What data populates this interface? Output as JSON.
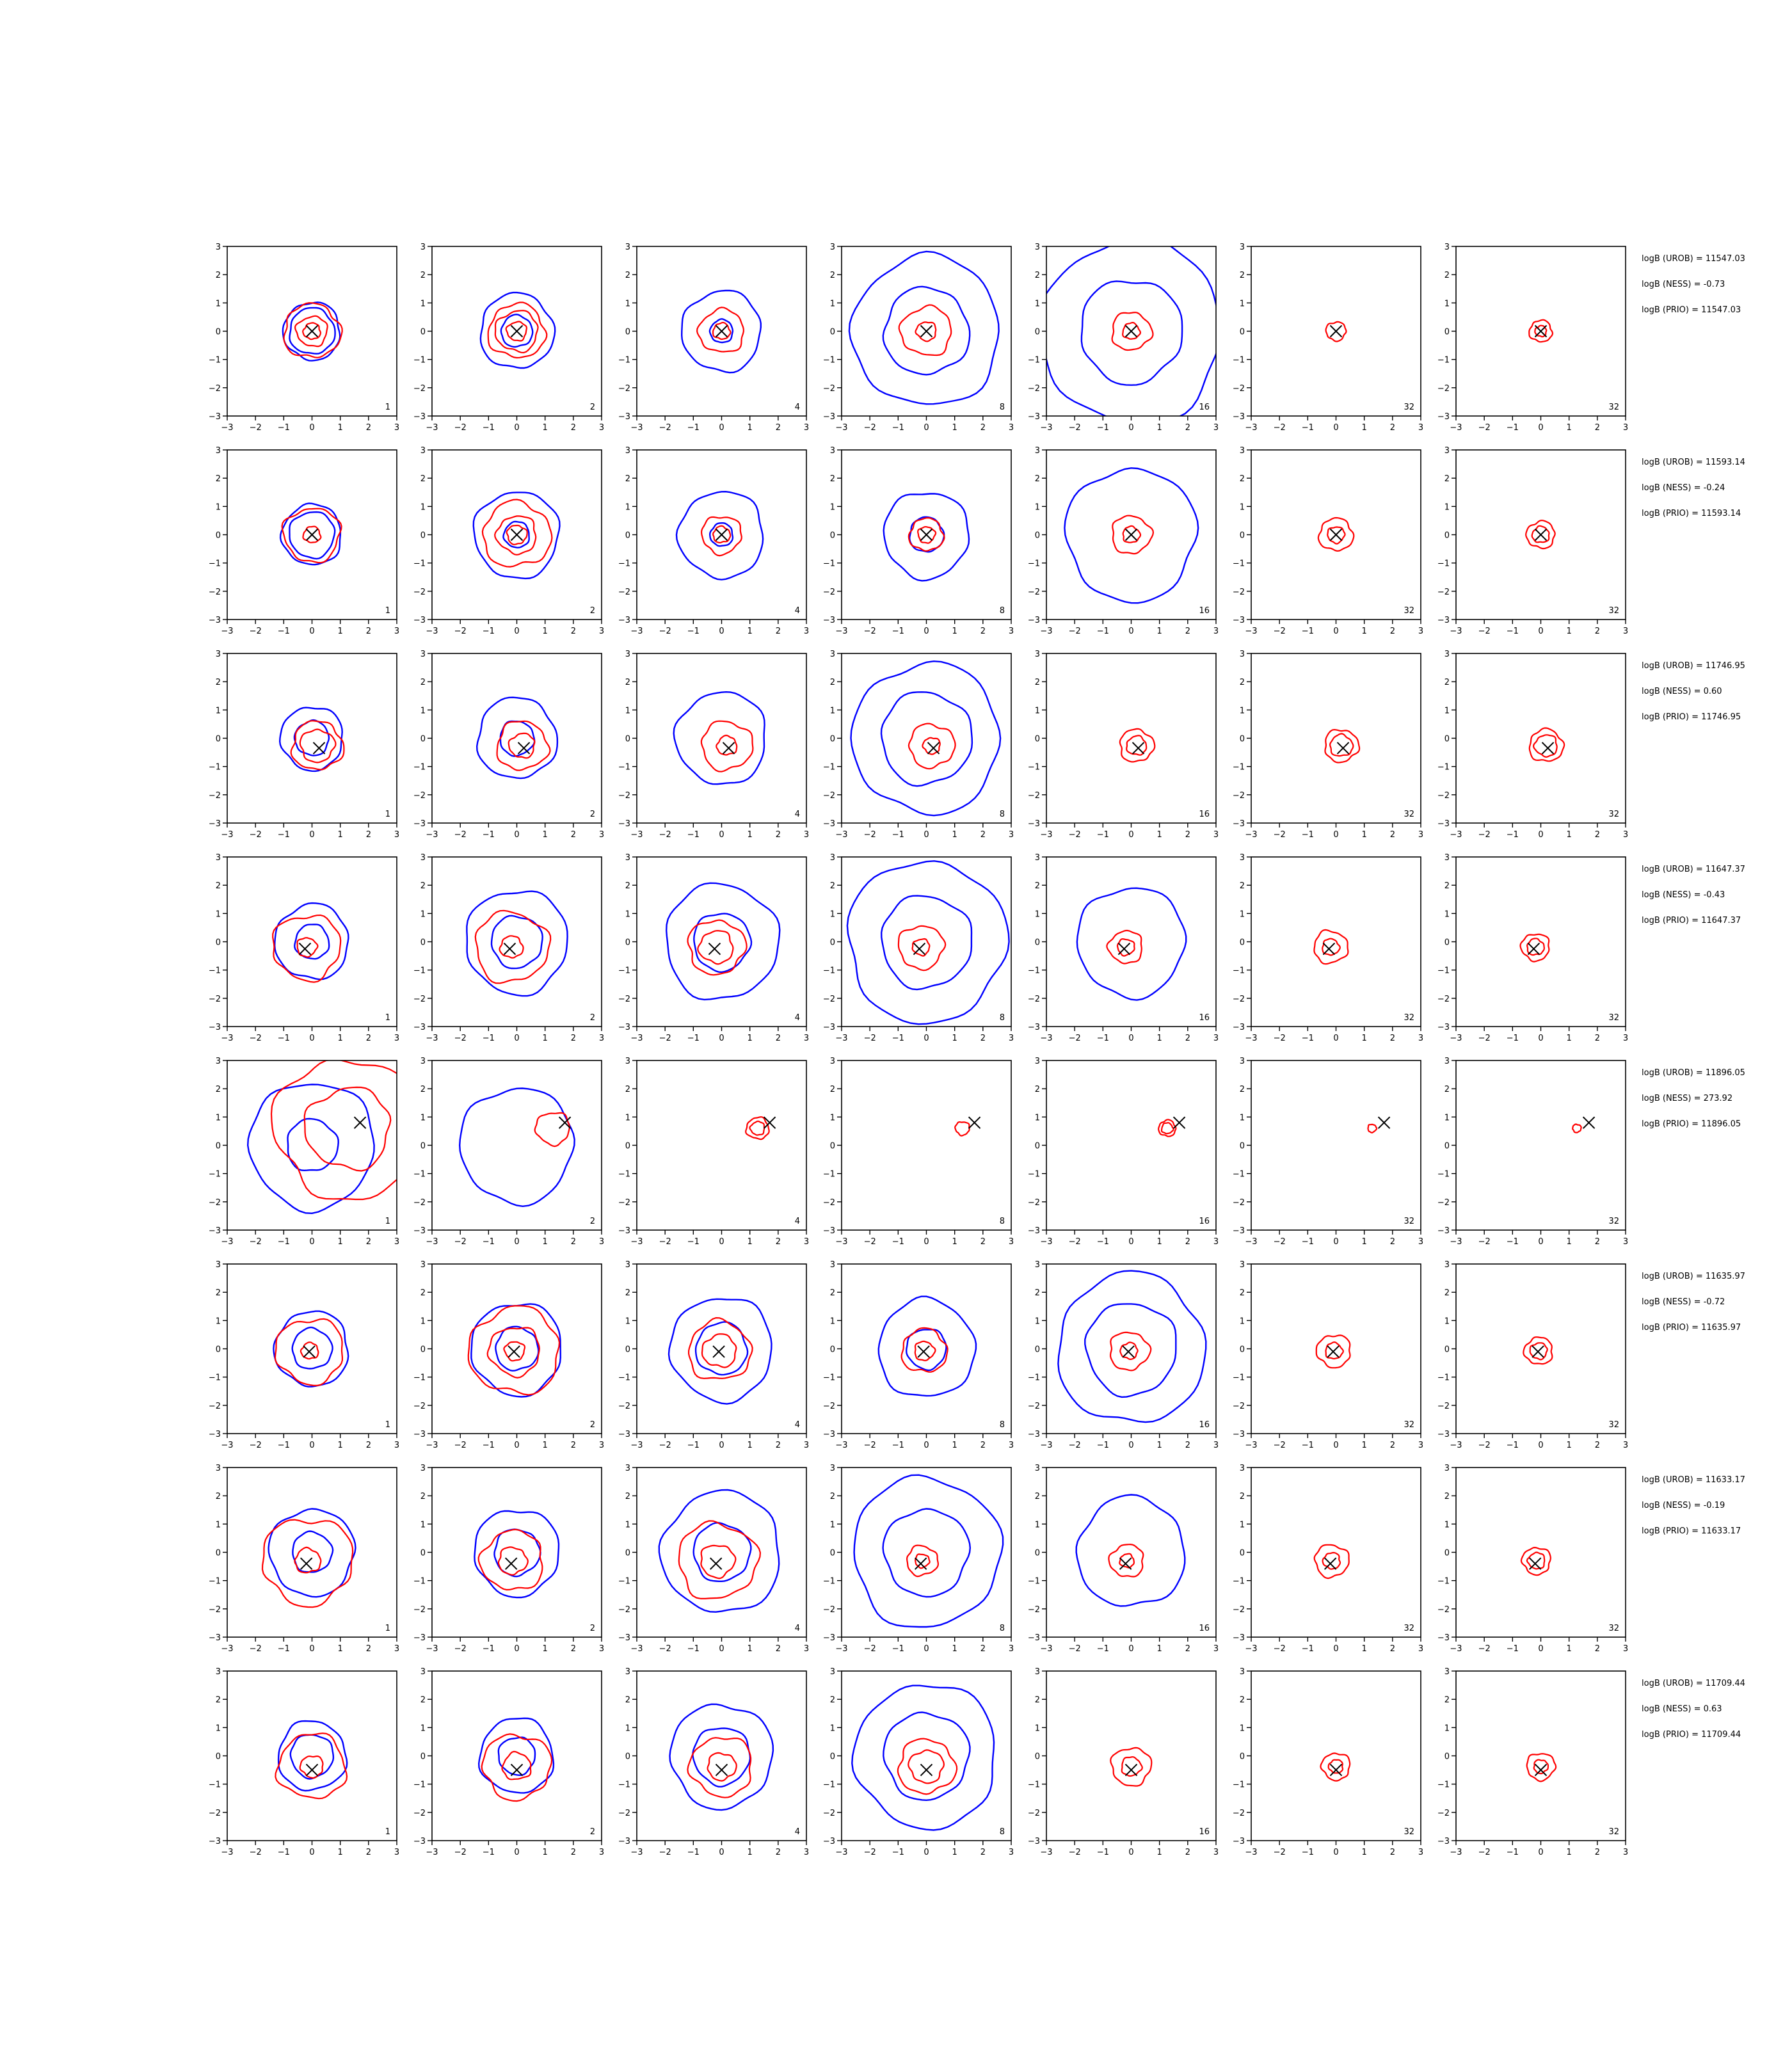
{
  "chart_data": {
    "type": "contour-grid",
    "xlim": [
      -3,
      3
    ],
    "ylim": [
      -3,
      3
    ],
    "ticks": [
      "-3",
      "-2",
      "-1",
      "0",
      "1",
      "2",
      "3"
    ],
    "contour_colors": {
      "blue": "#0000ff",
      "red": "#ff0000",
      "marker": "#000000"
    },
    "grid": false,
    "rows": [
      {
        "truth": [
          0.0,
          0.0
        ],
        "panels": [
          {
            "label": "1",
            "blue": [
              0.8,
              1.0
            ],
            "red": [
              0.3,
              1.0,
              0.55
            ]
          },
          {
            "label": "2",
            "blue": [
              0.55,
              1.3
            ],
            "red": [
              0.35,
              0.75,
              1.0
            ]
          },
          {
            "label": "4",
            "blue": [
              0.4,
              1.4
            ],
            "red": [
              0.3,
              0.8
            ]
          },
          {
            "label": "8",
            "blue": [
              1.5,
              2.6
            ],
            "red": [
              0.35,
              0.9
            ]
          },
          {
            "label": "16",
            "blue": [
              1.8,
              3.2
            ],
            "red": [
              0.3,
              0.7
            ]
          },
          {
            "label": "32",
            "blue": [],
            "red": [
              0.35
            ]
          },
          {
            "label": "32",
            "blue": [],
            "red": [
              0.2,
              0.4
            ]
          }
        ],
        "stats": {
          "urob": "logB (UROB) = 11547.03",
          "ness": "logB (NESS) = -0.73",
          "prio": "logB (PRIO) = 11547.03"
        }
      },
      {
        "truth": [
          0.0,
          0.0
        ],
        "panels": [
          {
            "label": "1",
            "blue": [
              0.8,
              1.05
            ],
            "red": [
              0.3,
              1.0
            ]
          },
          {
            "label": "2",
            "blue": [
              0.45,
              1.5
            ],
            "red": [
              0.35,
              0.7,
              1.2
            ]
          },
          {
            "label": "4",
            "blue": [
              0.4,
              1.5
            ],
            "red": [
              0.3,
              0.7
            ]
          },
          {
            "label": "8",
            "blue": [
              0.6,
              1.5
            ],
            "red": [
              0.3,
              0.6
            ]
          },
          {
            "label": "16",
            "blue": [
              2.3
            ],
            "red": [
              0.3,
              0.7
            ]
          },
          {
            "label": "32",
            "blue": [],
            "red": [
              0.3,
              0.6
            ]
          },
          {
            "label": "32",
            "blue": [],
            "red": [
              0.3,
              0.5
            ]
          }
        ],
        "stats": {
          "urob": "logB (UROB) = 11593.14",
          "ness": "logB (NESS) = -0.24",
          "prio": "logB (PRIO) = 11593.14"
        }
      },
      {
        "truth": [
          0.25,
          -0.35
        ],
        "panels": [
          {
            "label": "1",
            "blue": [
              0.6,
              1.1
            ],
            "red": [
              0.6,
              0.9
            ]
          },
          {
            "label": "2",
            "blue": [
              0.6,
              1.4
            ],
            "red": [
              0.45,
              0.9
            ]
          },
          {
            "label": "4",
            "blue": [
              1.6
            ],
            "red": [
              0.35,
              0.9
            ]
          },
          {
            "label": "8",
            "blue": [
              1.6,
              2.6
            ],
            "red": [
              0.3,
              0.8
            ]
          },
          {
            "label": "16",
            "blue": [],
            "red": [
              0.35,
              0.6
            ]
          },
          {
            "label": "32",
            "blue": [],
            "red": [
              0.4,
              0.6
            ]
          },
          {
            "label": "32",
            "blue": [],
            "red": [
              0.4,
              0.6
            ]
          }
        ],
        "stats": {
          "urob": "logB (UROB) = 11746.95",
          "ness": "logB (NESS) = 0.60",
          "prio": "logB (PRIO) = 11746.95"
        }
      },
      {
        "truth": [
          -0.25,
          -0.25
        ],
        "panels": [
          {
            "label": "1",
            "blue": [
              0.6,
              1.3
            ],
            "red": [
              0.35,
              1.2
            ]
          },
          {
            "label": "2",
            "blue": [
              0.9,
              1.8
            ],
            "red": [
              0.4,
              1.3
            ]
          },
          {
            "label": "4",
            "blue": [
              1.0,
              2.0
            ],
            "red": [
              0.6,
              1.0
            ]
          },
          {
            "label": "8",
            "blue": [
              1.6,
              2.8
            ],
            "red": [
              0.3,
              0.8
            ]
          },
          {
            "label": "16",
            "blue": [
              1.9
            ],
            "red": [
              0.3,
              0.6
            ]
          },
          {
            "label": "32",
            "blue": [],
            "red": [
              0.3,
              0.6
            ]
          },
          {
            "label": "32",
            "blue": [],
            "red": [
              0.3,
              0.5
            ]
          }
        ],
        "stats": {
          "urob": "logB (UROB) = 11647.37",
          "ness": "logB (NESS) = -0.43",
          "prio": "logB (PRIO) = 11647.37"
        }
      },
      {
        "truth": [
          1.7,
          0.8
        ],
        "panels": [
          {
            "label": "1",
            "blue": [
              0.9,
              2.2
            ],
            "red": [
              1.5,
              2.6
            ]
          },
          {
            "label": "2",
            "blue": [
              2.0
            ],
            "red": [
              0.6
            ]
          },
          {
            "label": "4",
            "blue": [],
            "red": [
              0.25,
              0.4
            ]
          },
          {
            "label": "8",
            "blue": [],
            "red": [
              0.25
            ]
          },
          {
            "label": "16",
            "blue": [],
            "red": [
              0.2,
              0.3
            ]
          },
          {
            "label": "32",
            "blue": [],
            "red": [
              0.15
            ]
          },
          {
            "label": "32",
            "blue": [],
            "red": [
              0.15
            ]
          }
        ],
        "stats": {
          "urob": "logB (UROB) = 11896.05",
          "ness": "logB (NESS) = 273.92",
          "prio": "logB (PRIO) = 11896.05"
        }
      },
      {
        "truth": [
          -0.1,
          -0.1
        ],
        "panels": [
          {
            "label": "1",
            "blue": [
              0.7,
              1.3
            ],
            "red": [
              0.3,
              1.2
            ]
          },
          {
            "label": "2",
            "blue": [
              0.75,
              1.6
            ],
            "red": [
              0.35,
              0.9,
              1.6
            ]
          },
          {
            "label": "4",
            "blue": [
              0.9,
              1.8
            ],
            "red": [
              0.6,
              1.1
            ]
          },
          {
            "label": "8",
            "blue": [
              0.7,
              1.7
            ],
            "red": [
              0.35,
              0.8
            ]
          },
          {
            "label": "16",
            "blue": [
              1.6,
              2.6
            ],
            "red": [
              0.3,
              0.7
            ]
          },
          {
            "label": "32",
            "blue": [],
            "red": [
              0.3,
              0.6
            ]
          },
          {
            "label": "32",
            "blue": [],
            "red": [
              0.3,
              0.5
            ]
          }
        ],
        "stats": {
          "urob": "logB (UROB) = 11635.97",
          "ness": "logB (NESS) = -0.72",
          "prio": "logB (PRIO) = 11635.97"
        }
      },
      {
        "truth": [
          -0.2,
          -0.4
        ],
        "panels": [
          {
            "label": "1",
            "blue": [
              0.7,
              1.5
            ],
            "red": [
              0.45,
              1.6
            ]
          },
          {
            "label": "2",
            "blue": [
              0.8,
              1.5
            ],
            "red": [
              0.5,
              1.1
            ]
          },
          {
            "label": "4",
            "blue": [
              1.0,
              2.1
            ],
            "red": [
              0.6,
              1.4
            ]
          },
          {
            "label": "8",
            "blue": [
              1.5,
              2.6
            ],
            "red": [
              0.25,
              0.55
            ]
          },
          {
            "label": "16",
            "blue": [
              1.9
            ],
            "red": [
              0.25,
              0.6
            ]
          },
          {
            "label": "32",
            "blue": [],
            "red": [
              0.3,
              0.6
            ]
          },
          {
            "label": "32",
            "blue": [],
            "red": [
              0.3,
              0.5
            ]
          }
        ],
        "stats": {
          "urob": "logB (UROB) = 11633.17",
          "ness": "logB (NESS) = -0.19",
          "prio": "logB (PRIO) = 11633.17"
        }
      },
      {
        "truth": [
          0.0,
          -0.5
        ],
        "panels": [
          {
            "label": "1",
            "blue": [
              0.75,
              1.2
            ],
            "red": [
              0.4,
              1.2
            ]
          },
          {
            "label": "2",
            "blue": [
              0.65,
              1.3
            ],
            "red": [
              0.5,
              1.2
            ]
          },
          {
            "label": "4",
            "blue": [
              1.0,
              1.8
            ],
            "red": [
              0.5,
              1.1
            ]
          },
          {
            "label": "8",
            "blue": [
              1.5,
              2.5
            ],
            "red": [
              0.6,
              1.0
            ]
          },
          {
            "label": "16",
            "blue": [],
            "red": [
              0.35,
              0.7
            ]
          },
          {
            "label": "32",
            "blue": [],
            "red": [
              0.25,
              0.5
            ]
          },
          {
            "label": "32",
            "blue": [],
            "red": [
              0.25,
              0.5
            ]
          }
        ],
        "stats": {
          "urob": "logB (UROB) = 11709.44",
          "ness": "logB (NESS) = 0.63",
          "prio": "logB (PRIO) = 11709.44"
        }
      }
    ]
  }
}
